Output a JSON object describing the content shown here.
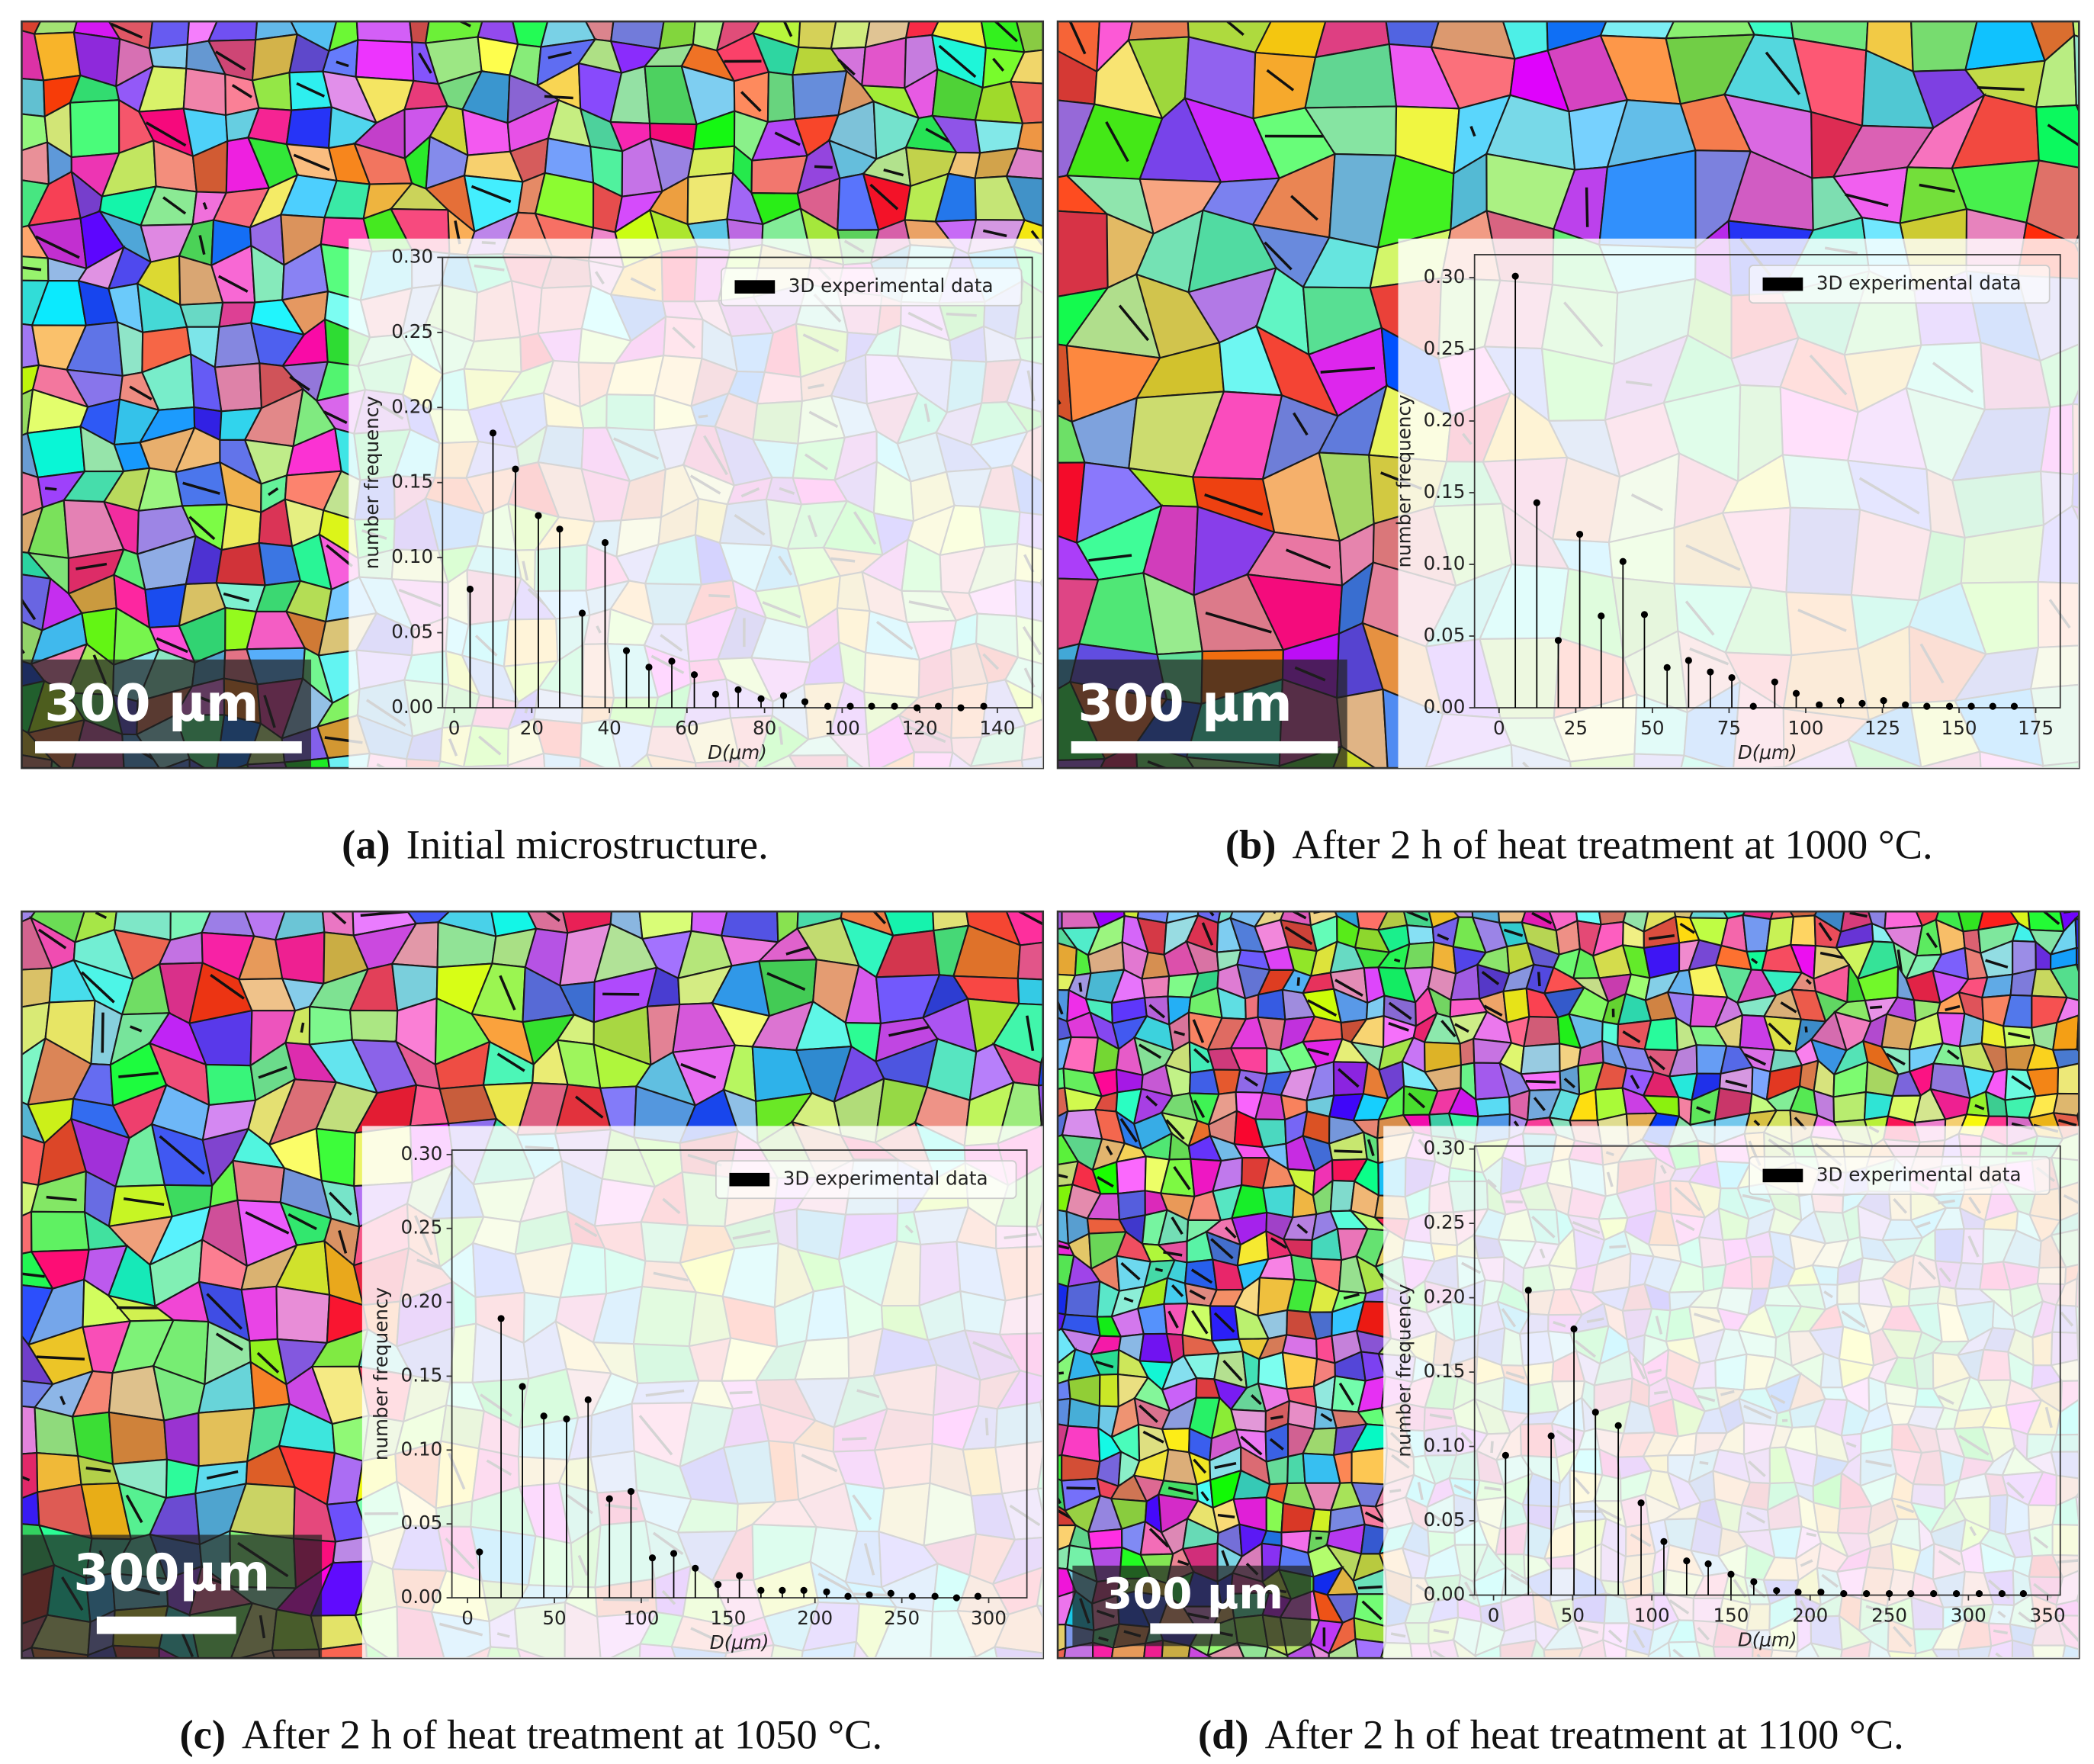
{
  "chart_data": [
    {
      "type": "stem",
      "caption_label": "(a)",
      "caption": "Initial microstructure.",
      "scale_bar": "300 μm",
      "xlabel": "D(μm)",
      "ylabel": "number frequency",
      "x": [
        4.1,
        10,
        15.8,
        21.7,
        27.2,
        33,
        38.9,
        44.4,
        50.2,
        56.1,
        61.9,
        67.4,
        73.2,
        79.1,
        84.9,
        90.4,
        96.3,
        102.1,
        107.6,
        113.5,
        119.3,
        124.8,
        130.6,
        136.5
      ],
      "series": [
        {
          "name": "3D experimental data",
          "color": "#000000",
          "values": [
            0.079,
            0.183,
            0.159,
            0.128,
            0.119,
            0.063,
            0.11,
            0.038,
            0.027,
            0.031,
            0.022,
            0.009,
            0.012,
            0.006,
            0.008,
            0.004,
            0.001,
            0.001,
            0.001,
            0.001,
            0.0,
            0.001,
            0.0,
            0.001
          ]
        }
      ],
      "xlim": [
        -3,
        149
      ],
      "ylim": [
        0,
        0.3
      ],
      "xticks": [
        0,
        20,
        40,
        60,
        80,
        100,
        120,
        140
      ],
      "yticks": [
        {
          "value": 0,
          "label": "0.00"
        },
        0.05,
        {
          "value": 0.1,
          "label": "0.10"
        },
        0.15,
        {
          "value": 0.2,
          "label": "0.20"
        },
        0.25,
        {
          "value": 0.3,
          "label": "0.30"
        }
      ]
    },
    {
      "type": "stem",
      "caption_label": "(b)",
      "caption": "After 2 h of heat treatment at 1000 °C.",
      "scale_bar": "300 μm",
      "xlabel": "D(μm)",
      "ylabel": "number frequency",
      "x": [
        5.3,
        12.3,
        19.3,
        26.3,
        33.3,
        40.4,
        47.4,
        54.8,
        61.8,
        68.9,
        75.9,
        82.9,
        89.9,
        96.9,
        104.4,
        111.4,
        118.4,
        125.4,
        132.5,
        139.5,
        146.9,
        154,
        161,
        168
      ],
      "series": [
        {
          "name": "3D experimental data",
          "color": "#000000",
          "values": [
            0.301,
            0.143,
            0.047,
            0.121,
            0.064,
            0.102,
            0.065,
            0.028,
            0.033,
            0.025,
            0.021,
            0.001,
            0.018,
            0.01,
            0.002,
            0.005,
            0.003,
            0.005,
            0.002,
            0.001,
            0.001,
            0.001,
            0.001,
            0.001
          ]
        }
      ],
      "xlim": [
        -8,
        183
      ],
      "ylim": [
        0,
        0.316
      ],
      "xticks": [
        0,
        25,
        50,
        75,
        100,
        125,
        150,
        175
      ],
      "yticks": [
        {
          "value": 0,
          "label": "0.00"
        },
        0.05,
        {
          "value": 0.1,
          "label": "0.10"
        },
        0.15,
        {
          "value": 0.2,
          "label": "0.20"
        },
        0.25,
        {
          "value": 0.3,
          "label": "0.30"
        }
      ]
    },
    {
      "type": "stem",
      "caption_label": "(c)",
      "caption": "After 2 h of heat treatment at 1050 °C.",
      "scale_bar": "300μm",
      "xlabel": "D(μm)",
      "ylabel": "number frequency",
      "x": [
        6.9,
        19.3,
        31.6,
        43.9,
        57,
        69.4,
        81.7,
        94.1,
        106.4,
        118.7,
        131.1,
        144.2,
        156.5,
        168.9,
        181.2,
        193.6,
        206.7,
        219,
        231.3,
        243.7,
        256,
        269.1,
        281.5,
        293.8
      ],
      "series": [
        {
          "name": "3D experimental data",
          "color": "#000000",
          "values": [
            0.031,
            0.189,
            0.143,
            0.123,
            0.121,
            0.134,
            0.067,
            0.072,
            0.027,
            0.03,
            0.02,
            0.009,
            0.015,
            0.005,
            0.005,
            0.005,
            0.004,
            0.001,
            0.002,
            0.003,
            0.001,
            0.001,
            0.0,
            0.001
          ]
        }
      ],
      "xlim": [
        -9,
        322
      ],
      "ylim": [
        0,
        0.303
      ],
      "xticks": [
        0,
        50,
        100,
        150,
        200,
        250,
        300
      ],
      "yticks": [
        {
          "value": 0,
          "label": "0.00"
        },
        0.05,
        {
          "value": 0.1,
          "label": "0.10"
        },
        0.15,
        {
          "value": 0.2,
          "label": "0.20"
        },
        0.25,
        {
          "value": 0.3,
          "label": "0.30"
        }
      ]
    },
    {
      "type": "stem",
      "caption_label": "(d)",
      "caption": "After 2 h of heat treatment at 1100 °C.",
      "scale_bar": "300 μm",
      "xlabel": "D(μm)",
      "ylabel": "number frequency",
      "x": [
        7.6,
        22,
        36.4,
        50.8,
        64.4,
        78.8,
        93.2,
        107.6,
        122,
        135.6,
        150,
        164.4,
        178.8,
        192.4,
        206.8,
        221.2,
        235.6,
        250,
        263.6,
        278,
        292.4,
        306.8,
        321.2,
        334.7
      ],
      "series": [
        {
          "name": "3D experimental data",
          "color": "#000000",
          "values": [
            0.094,
            0.205,
            0.107,
            0.179,
            0.123,
            0.114,
            0.062,
            0.036,
            0.023,
            0.021,
            0.014,
            0.009,
            0.003,
            0.002,
            0.002,
            0.001,
            0.001,
            0.001,
            0.001,
            0.001,
            0.001,
            0.001,
            0.001,
            0.001
          ]
        }
      ],
      "xlim": [
        -12,
        358
      ],
      "ylim": [
        0,
        0.302
      ],
      "xticks": [
        0,
        50,
        100,
        150,
        200,
        250,
        300,
        350
      ],
      "yticks": [
        {
          "value": 0,
          "label": "0.00"
        },
        0.05,
        {
          "value": 0.1,
          "label": "0.10"
        },
        0.15,
        {
          "value": 0.2,
          "label": "0.20"
        },
        0.25,
        {
          "value": 0.3,
          "label": "0.30"
        }
      ]
    }
  ]
}
